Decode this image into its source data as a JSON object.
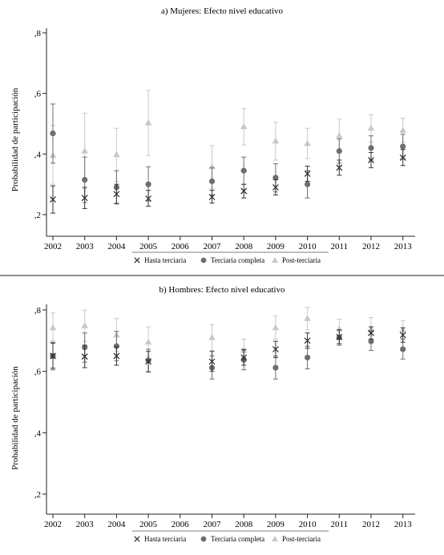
{
  "chart_data": [
    {
      "type": "scatter",
      "title": "a) Mujeres: Efecto nivel educativo",
      "ylabel": "Probabilidad de participación",
      "xlabel": "",
      "ylim": [
        0.2,
        0.8
      ],
      "yticks": [
        0.2,
        0.4,
        0.6,
        0.8
      ],
      "ytick_labels": [
        ",2",
        ",4",
        ",6",
        ",8"
      ],
      "x": [
        "2002",
        "2003",
        "2004",
        "2005",
        "2006",
        "2007",
        "2008",
        "2009",
        "2010",
        "2011",
        "2012",
        "2013"
      ],
      "grid": false,
      "legend_position": "bottom",
      "series": [
        {
          "name": "Hasta terciaria",
          "marker": "x",
          "color": "#333333",
          "values": [
            0.25,
            0.255,
            0.268,
            0.253,
            null,
            0.258,
            0.278,
            0.29,
            0.335,
            0.355,
            0.38,
            0.388
          ],
          "lower": [
            0.205,
            0.22,
            0.237,
            0.228,
            null,
            0.238,
            0.255,
            0.265,
            0.31,
            0.33,
            0.355,
            0.362
          ],
          "upper": [
            0.295,
            0.29,
            0.3,
            0.28,
            null,
            0.28,
            0.3,
            0.315,
            0.36,
            0.38,
            0.405,
            0.415
          ]
        },
        {
          "name": "Terciaria completa",
          "marker": "circle",
          "color": "#6e6e6e",
          "values": [
            0.468,
            0.315,
            0.29,
            0.3,
            null,
            0.31,
            0.345,
            0.322,
            0.3,
            0.41,
            0.42,
            0.425
          ],
          "lower": [
            0.37,
            0.24,
            0.235,
            0.245,
            null,
            0.265,
            0.3,
            0.275,
            0.255,
            0.37,
            0.38,
            0.385
          ],
          "upper": [
            0.565,
            0.39,
            0.345,
            0.358,
            null,
            0.355,
            0.39,
            0.368,
            0.345,
            0.45,
            0.46,
            0.465
          ]
        },
        {
          "name": "Post-terciaria",
          "marker": "triangle",
          "color": "#c8c8c8",
          "values": [
            0.395,
            0.41,
            0.398,
            0.503,
            null,
            0.358,
            0.49,
            0.443,
            0.435,
            0.46,
            0.485,
            0.478
          ],
          "lower": [
            0.3,
            0.285,
            0.31,
            0.395,
            null,
            0.285,
            0.43,
            0.38,
            0.385,
            0.405,
            0.44,
            0.44
          ],
          "upper": [
            0.495,
            0.535,
            0.485,
            0.61,
            null,
            0.428,
            0.55,
            0.505,
            0.485,
            0.515,
            0.53,
            0.518
          ]
        }
      ]
    },
    {
      "type": "scatter",
      "title": "b) Hombres: Efecto nivel educativo",
      "ylabel": "Probabilidad de participación",
      "xlabel": "",
      "ylim": [
        0.2,
        0.8
      ],
      "yticks": [
        0.2,
        0.4,
        0.6,
        0.8
      ],
      "ytick_labels": [
        ",2",
        ",4",
        ",6",
        ",8"
      ],
      "x": [
        "2002",
        "2003",
        "2004",
        "2005",
        "2006",
        "2007",
        "2008",
        "2009",
        "2010",
        "2011",
        "2012",
        "2013"
      ],
      "grid": false,
      "legend_position": "bottom",
      "series": [
        {
          "name": "Hasta terciaria",
          "marker": "x",
          "color": "#333333",
          "values": [
            0.65,
            0.648,
            0.65,
            0.632,
            null,
            0.632,
            0.645,
            0.672,
            0.7,
            0.712,
            0.725,
            0.718
          ],
          "lower": [
            0.61,
            0.612,
            0.62,
            0.598,
            null,
            0.6,
            0.62,
            0.645,
            0.675,
            0.69,
            0.705,
            0.695
          ],
          "upper": [
            0.692,
            0.685,
            0.68,
            0.665,
            null,
            0.665,
            0.67,
            0.698,
            0.725,
            0.735,
            0.745,
            0.742
          ]
        },
        {
          "name": "Terciaria completa",
          "marker": "circle",
          "color": "#6e6e6e",
          "values": [
            0.65,
            0.678,
            0.682,
            0.635,
            null,
            0.612,
            0.638,
            0.612,
            0.645,
            0.71,
            0.698,
            0.672
          ],
          "lower": [
            0.605,
            0.63,
            0.635,
            0.598,
            null,
            0.575,
            0.605,
            0.575,
            0.608,
            0.685,
            0.668,
            0.64
          ],
          "upper": [
            0.695,
            0.725,
            0.73,
            0.672,
            null,
            0.65,
            0.672,
            0.65,
            0.682,
            0.735,
            0.728,
            0.705
          ]
        },
        {
          "name": "Post-terciaria",
          "marker": "triangle",
          "color": "#c8c8c8",
          "values": [
            0.742,
            0.748,
            0.718,
            0.695,
            null,
            0.71,
            0.668,
            0.742,
            0.772,
            0.738,
            0.738,
            0.735
          ],
          "lower": [
            0.7,
            0.698,
            0.665,
            0.648,
            null,
            0.668,
            0.63,
            0.705,
            0.735,
            0.708,
            0.7,
            0.705
          ],
          "upper": [
            0.79,
            0.8,
            0.772,
            0.745,
            null,
            0.752,
            0.705,
            0.78,
            0.808,
            0.77,
            0.775,
            0.765
          ]
        }
      ]
    }
  ]
}
